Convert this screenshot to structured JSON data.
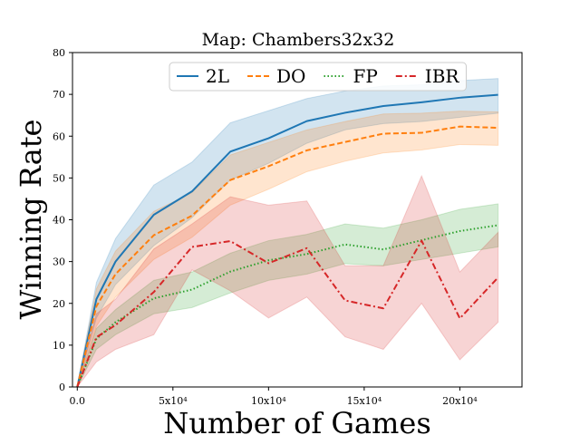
{
  "chart_data": {
    "type": "line",
    "title": "Map: Chambers32x32",
    "xlabel": "Number of Games",
    "ylabel": "Winning Rate",
    "xlim": [
      -2500,
      232500
    ],
    "ylim": [
      0,
      80
    ],
    "xticks": [
      {
        "value": 0,
        "label": "0.0"
      },
      {
        "value": 50000,
        "label": "5x10⁴"
      },
      {
        "value": 100000,
        "label": "10x10⁴"
      },
      {
        "value": 150000,
        "label": "15x10⁴"
      },
      {
        "value": 200000,
        "label": "20x10⁴"
      }
    ],
    "yticks": [
      {
        "value": 0,
        "label": "0"
      },
      {
        "value": 10,
        "label": "10"
      },
      {
        "value": 20,
        "label": "20"
      },
      {
        "value": 30,
        "label": "30"
      },
      {
        "value": 40,
        "label": "40"
      },
      {
        "value": 50,
        "label": "50"
      },
      {
        "value": 60,
        "label": "60"
      },
      {
        "value": 70,
        "label": "70"
      },
      {
        "value": 80,
        "label": "80"
      }
    ],
    "grid": false,
    "legend": "top-center",
    "x": [
      0,
      10000,
      20000,
      40000,
      60000,
      80000,
      100000,
      120000,
      140000,
      160000,
      180000,
      200000,
      220000
    ],
    "series": [
      {
        "name": "2L",
        "color": "#1f77b4",
        "dash": "solid",
        "values": [
          0,
          21,
          30,
          41.2,
          46.8,
          56.3,
          59.5,
          63.6,
          65.6,
          67.2,
          68.1,
          69.2,
          69.9
        ],
        "lower": [
          0,
          16.5,
          24.5,
          33.8,
          40.5,
          49.5,
          53.5,
          58.3,
          61.5,
          63,
          63.5,
          64.5,
          65.5
        ],
        "upper": [
          0,
          25,
          35.5,
          48.3,
          53.8,
          63.2,
          66.1,
          69,
          70.8,
          72,
          72.3,
          73.3,
          73.8
        ]
      },
      {
        "name": "DO",
        "color": "#ff7f0e",
        "dash": "dashed",
        "values": [
          0,
          19.3,
          27,
          36.3,
          41,
          49.5,
          52.8,
          56.6,
          58.6,
          60.6,
          60.8,
          62.3,
          62
        ],
        "lower": [
          0,
          14.5,
          21.5,
          30.5,
          35.8,
          43.5,
          47.3,
          51.5,
          54,
          56,
          56.7,
          58,
          57.8
        ],
        "upper": [
          0,
          23.5,
          32.5,
          42,
          46.5,
          55.5,
          58.5,
          61.5,
          63.5,
          65.3,
          65.5,
          66,
          65.8
        ]
      },
      {
        "name": "FP",
        "color": "#2ca02c",
        "dash": "dotted",
        "values": [
          0,
          11.5,
          15.5,
          21.2,
          23.3,
          27.6,
          30.3,
          31.8,
          34.1,
          32.9,
          35.1,
          37.3,
          38.7
        ],
        "lower": [
          0,
          9,
          12.5,
          17.5,
          19,
          22.5,
          25.5,
          27,
          29.5,
          29,
          30.5,
          32,
          33.5
        ],
        "upper": [
          0,
          14,
          18.5,
          25.5,
          27.5,
          32,
          35,
          36.5,
          39,
          38,
          40,
          42.5,
          43.8
        ]
      },
      {
        "name": "IBR",
        "color": "#d62728",
        "dash": "dashdot",
        "values": [
          0,
          11.9,
          14.8,
          22.7,
          33.5,
          34.9,
          29.6,
          33.2,
          20.7,
          18.8,
          35,
          16.4,
          26.2
        ],
        "lower": [
          0,
          6,
          9,
          12.5,
          28,
          23,
          16.5,
          21.5,
          12,
          9,
          20,
          6.5,
          15.5
        ],
        "upper": [
          0,
          17.5,
          21,
          33,
          39,
          45.5,
          43.5,
          44.5,
          29,
          29,
          50.5,
          27.5,
          37
        ]
      }
    ]
  }
}
